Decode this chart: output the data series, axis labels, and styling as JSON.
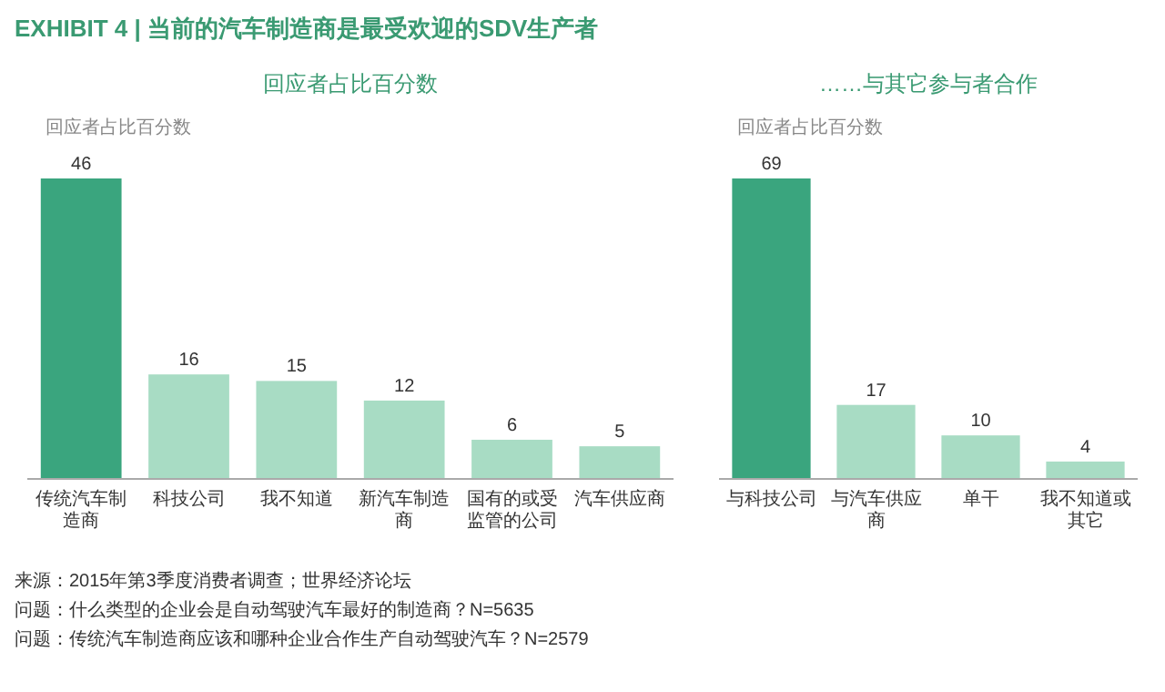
{
  "chart_data": [
    {
      "type": "bar",
      "title": "EXHIBIT 4 | 当前的汽车制造商是最受欢迎的SDV生产者",
      "subtitle": "回应者占比百分数",
      "ylabel": "回应者占比百分数",
      "categories": [
        "传统汽车制造商",
        "科技公司",
        "我不知道",
        "新汽车制造商",
        "国有的或受监管的公司",
        "汽车供应商"
      ],
      "values": [
        46,
        16,
        15,
        12,
        6,
        5
      ],
      "colors": [
        "#3aa57e",
        "#a8dcc4",
        "#a8dcc4",
        "#a8dcc4",
        "#a8dcc4",
        "#a8dcc4"
      ],
      "data_labels": true,
      "annotations": [
        "来源：2015年第3季度消费者调查；世界经济论坛",
        "问题：什么类型的企业会是自动驾驶汽车最好的制造商？N=5635",
        "问题：传统汽车制造商应该和哪种企业合作生产自动驾驶汽车？N=2579"
      ]
    },
    {
      "type": "bar",
      "subtitle": "……与其它参与者合作",
      "ylabel": "回应者占比百分数",
      "categories": [
        "与科技公司",
        "与汽车供应商",
        "单干",
        "我不知道或其它"
      ],
      "values": [
        69,
        17,
        10,
        4
      ],
      "colors": [
        "#3aa57e",
        "#a8dcc4",
        "#a8dcc4",
        "#a8dcc4"
      ],
      "data_labels": true
    }
  ]
}
